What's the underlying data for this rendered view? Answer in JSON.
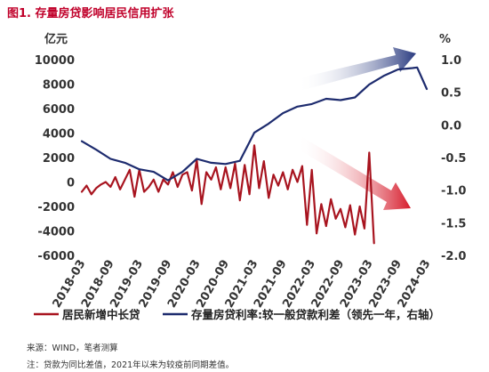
{
  "header": {
    "title": "图1. 存量房贷影响居民信用扩张"
  },
  "footer": {
    "source": "来源：WIND，笔者测算",
    "note": "注：贷款为同比差值，2021年以来为较疫前同期差值。"
  },
  "colors": {
    "title": "#c0002a",
    "series_loans": "#a8141f",
    "series_spread": "#1d2b6e",
    "arrow_up": "#2a3b80",
    "arrow_down": "#d61b2b"
  },
  "chart_data": {
    "type": "line",
    "left_axis": {
      "unit": "亿元",
      "ticks": [
        "10000",
        "8000",
        "6000",
        "4000",
        "2000",
        "0",
        "-2000",
        "-4000",
        "-6000"
      ],
      "ylim": [
        -6000,
        10000
      ]
    },
    "right_axis": {
      "unit": "%",
      "ticks": [
        "1.0",
        "0.5",
        "0.0",
        "-0.5",
        "-1.0",
        "-1.5",
        "-2.0"
      ],
      "ylim": [
        -2.0,
        1.0
      ]
    },
    "x_ticks": [
      "2018-03",
      "2018-09",
      "2019-03",
      "2019-09",
      "2020-03",
      "2020-09",
      "2021-03",
      "2021-09",
      "2022-03",
      "2022-09",
      "2023-03",
      "2023-09",
      "2024-03"
    ],
    "x_range": [
      "2018-03",
      "2024-03"
    ],
    "grid": false,
    "legend_position": "bottom",
    "series": [
      {
        "name": "居民新增中长贷",
        "axis": "left",
        "x": [
          "2018-03",
          "2018-04",
          "2018-05",
          "2018-06",
          "2018-07",
          "2018-08",
          "2018-09",
          "2018-10",
          "2018-11",
          "2018-12",
          "2019-01",
          "2019-02",
          "2019-03",
          "2019-04",
          "2019-05",
          "2019-06",
          "2019-07",
          "2019-08",
          "2019-09",
          "2019-10",
          "2019-11",
          "2019-12",
          "2020-01",
          "2020-02",
          "2020-03",
          "2020-04",
          "2020-05",
          "2020-06",
          "2020-07",
          "2020-08",
          "2020-09",
          "2020-10",
          "2020-11",
          "2020-12",
          "2021-01",
          "2021-02",
          "2021-03",
          "2021-04",
          "2021-05",
          "2021-06",
          "2021-07",
          "2021-08",
          "2021-09",
          "2021-10",
          "2021-11",
          "2021-12",
          "2022-01",
          "2022-02",
          "2022-03",
          "2022-04",
          "2022-05",
          "2022-06",
          "2022-07",
          "2022-08",
          "2022-09",
          "2022-10",
          "2022-11",
          "2022-12",
          "2023-01",
          "2023-02",
          "2023-03",
          "2023-04"
        ],
        "values": [
          -800,
          -300,
          -1000,
          -500,
          -200,
          0,
          -400,
          400,
          -600,
          200,
          1000,
          -1200,
          1000,
          -800,
          -400,
          200,
          -800,
          200,
          -200,
          800,
          -400,
          600,
          800,
          -700,
          1800,
          -1800,
          800,
          200,
          1200,
          -600,
          1200,
          -500,
          1500,
          -1500,
          1400,
          -1000,
          3000,
          -500,
          1700,
          -1300,
          600,
          -300,
          800,
          -600,
          1000,
          0,
          1300,
          -3500,
          1000,
          -4200,
          -1800,
          -3600,
          -1400,
          -3000,
          -2200,
          -3700,
          -1900,
          -4300,
          -2000,
          -3800,
          2400,
          -5000
        ]
      },
      {
        "name": "存量房贷利率:较一般贷款利差（领先一年，右轴）",
        "axis": "right",
        "x": [
          "2018-03",
          "2018-06",
          "2018-09",
          "2018-12",
          "2019-03",
          "2019-06",
          "2019-09",
          "2019-12",
          "2020-03",
          "2020-06",
          "2020-09",
          "2020-12",
          "2021-03",
          "2021-06",
          "2021-09",
          "2021-12",
          "2022-03",
          "2022-06",
          "2022-09",
          "2022-12",
          "2023-03",
          "2023-06",
          "2023-09",
          "2023-12",
          "2024-01",
          "2024-03"
        ],
        "values": [
          -0.25,
          -0.38,
          -0.52,
          -0.58,
          -0.68,
          -0.72,
          -0.85,
          -0.72,
          -0.52,
          -0.58,
          -0.6,
          -0.55,
          -0.12,
          0.02,
          0.18,
          0.28,
          0.32,
          0.4,
          0.38,
          0.42,
          0.62,
          0.75,
          0.85,
          0.87,
          0.88,
          0.55
        ]
      }
    ]
  }
}
